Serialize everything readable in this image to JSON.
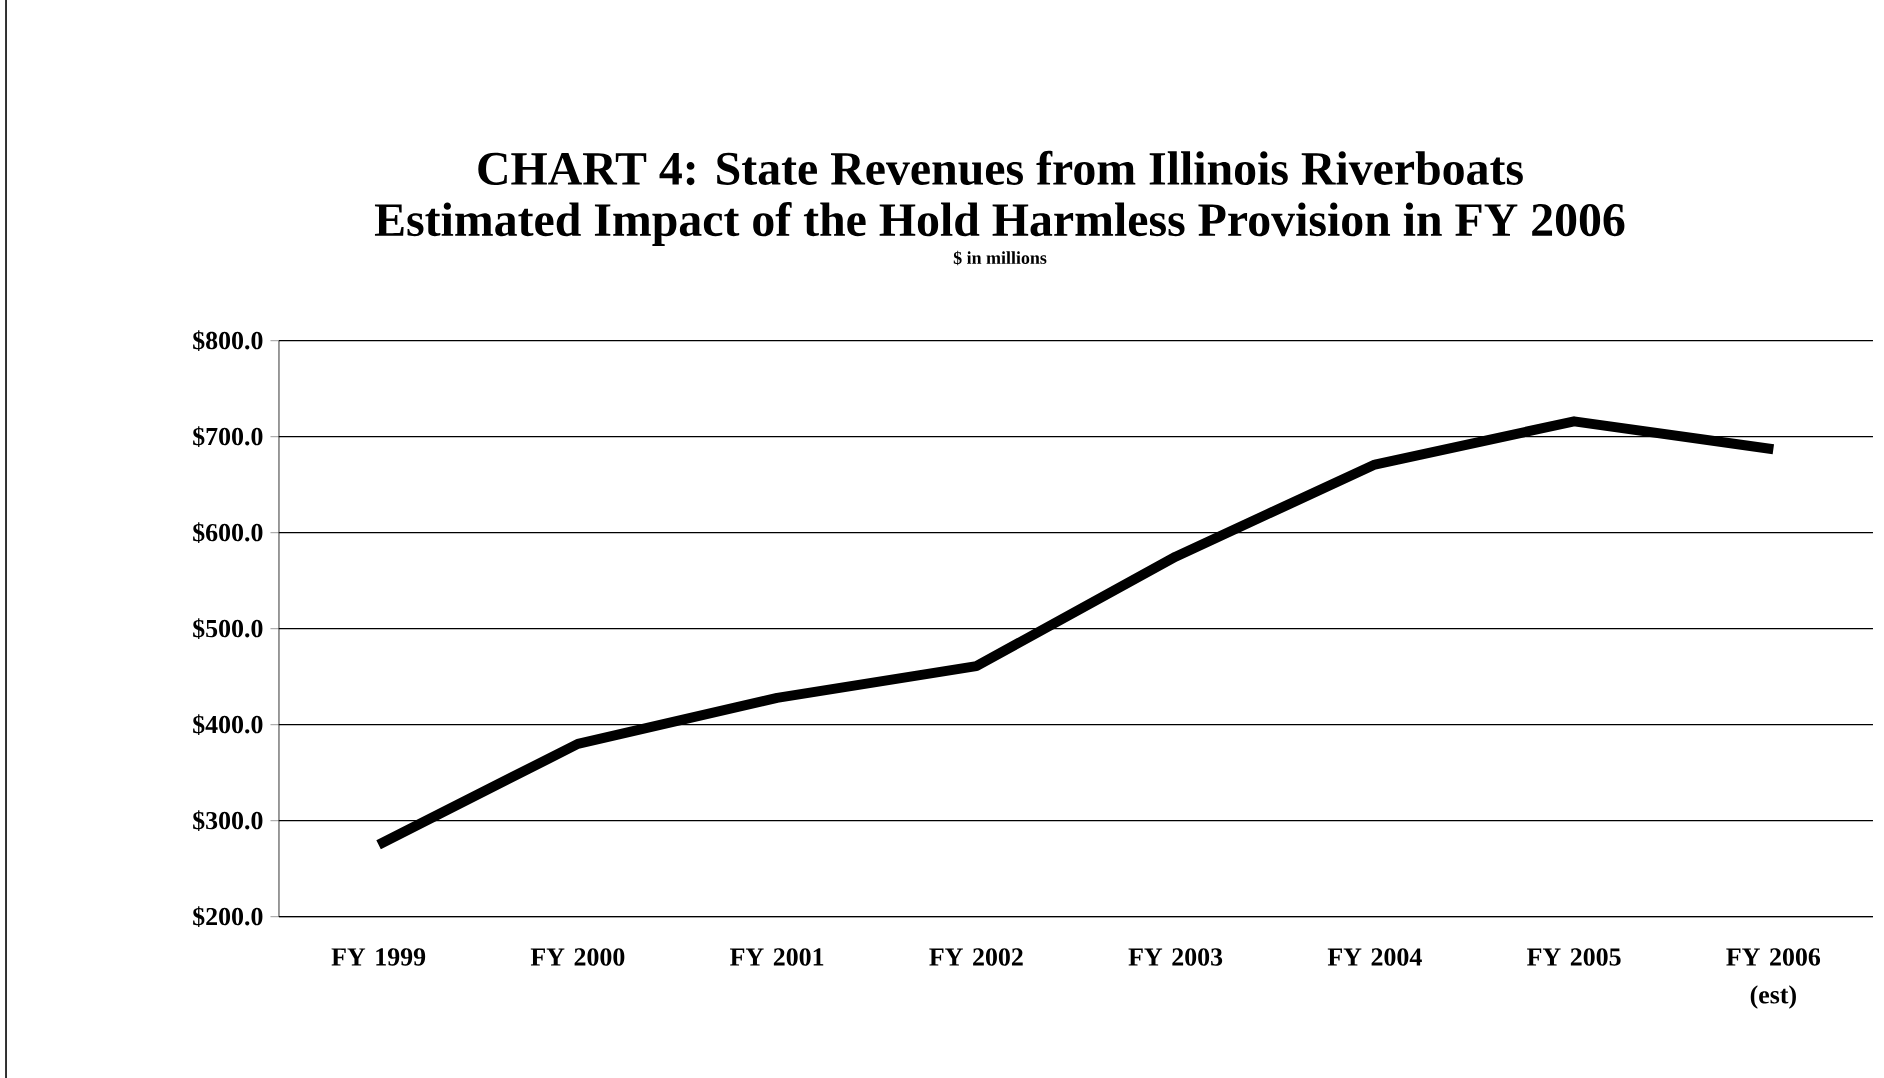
{
  "chart_data": {
    "type": "line",
    "title": "CHART 4: State Revenues from Illinois Riverboats",
    "subtitle": "Estimated Impact of the Hold Harmless Provision in FY 2006",
    "annotations": [
      "$ in millions"
    ],
    "categories": [
      "FY 1999",
      "FY 2000",
      "FY 2001",
      "FY 2002",
      "FY 2003",
      "FY 2004",
      "FY 2005",
      "FY 2006 (est)"
    ],
    "series": [
      {
        "color": "#000000",
        "values": [
          275,
          380,
          428,
          461,
          575,
          671,
          716,
          687
        ]
      }
    ],
    "ylim": [
      200,
      800
    ],
    "yticks": [
      {
        "value": 200,
        "label": "$200.0"
      },
      {
        "value": 300,
        "label": "$300.0"
      },
      {
        "value": 400,
        "label": "$400.0"
      },
      {
        "value": 500,
        "label": "$500.0"
      },
      {
        "value": 600,
        "label": "$600.0"
      },
      {
        "value": 700,
        "label": "$700.0"
      },
      {
        "value": 800,
        "label": "$800.0"
      }
    ],
    "grid": "y",
    "marker": "none",
    "line_style": "solid"
  }
}
